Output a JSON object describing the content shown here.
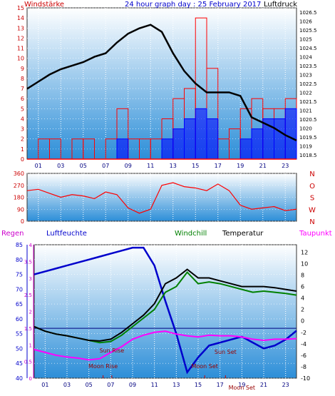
{
  "chart_data": [
    {
      "type": "line",
      "title": "24 hour graph day : 25 February 2017",
      "y_left_label": "Windstärke",
      "y_right_label": "Luftdruck",
      "x_ticks": [
        "01",
        "03",
        "05",
        "07",
        "09",
        "11",
        "13",
        "15",
        "17",
        "19",
        "21",
        "23"
      ],
      "y_left_ticks": [
        "0",
        "1",
        "2",
        "3",
        "4",
        "5",
        "6",
        "7",
        "8",
        "9",
        "10",
        "11",
        "12",
        "13",
        "14",
        "15"
      ],
      "y_left_range": [
        0,
        15
      ],
      "y_right_ticks": [
        "1018.5",
        "1019",
        "1019.5",
        "1020",
        "1020.5",
        "1021",
        "1021.5",
        "1022",
        "1022.5",
        "1023",
        "1023.5",
        "1024",
        "1024.5",
        "1025",
        "1025.5",
        "1026",
        "1026.5"
      ],
      "y_right_range": [
        1018.25,
        1026.75
      ],
      "grid": true,
      "series": [
        {
          "name": "Luftdruck",
          "axis": "right",
          "x": [
            0,
            1,
            2,
            3,
            4,
            5,
            6,
            7,
            8,
            9,
            10,
            11,
            12,
            13,
            14,
            15,
            16,
            17,
            18,
            19,
            20,
            21,
            22,
            23,
            24
          ],
          "values": [
            1022.2,
            1022.6,
            1023.0,
            1023.3,
            1023.5,
            1023.7,
            1024.0,
            1024.2,
            1024.8,
            1025.3,
            1025.6,
            1025.8,
            1025.4,
            1024.2,
            1023.2,
            1022.5,
            1022.0,
            1022.0,
            1022.0,
            1021.8,
            1020.6,
            1020.3,
            1020.0,
            1019.6,
            1019.3
          ],
          "color": "#000000"
        },
        {
          "name": "Windstärke gust",
          "axis": "left",
          "x": [
            0,
            1,
            2,
            3,
            4,
            5,
            6,
            7,
            8,
            9,
            10,
            11,
            12,
            13,
            14,
            15,
            16,
            17,
            18,
            19,
            20,
            21,
            22,
            23,
            24
          ],
          "values": [
            0,
            2,
            2,
            0,
            2,
            2,
            0,
            2,
            5,
            2,
            2,
            2,
            4,
            6,
            7,
            14,
            9,
            2,
            3,
            5,
            6,
            5,
            5,
            6,
            0
          ],
          "color": "#ff0000"
        },
        {
          "name": "Windstärke mean",
          "axis": "left",
          "x": [
            0,
            1,
            2,
            3,
            4,
            5,
            6,
            7,
            8,
            9,
            10,
            11,
            12,
            13,
            14,
            15,
            16,
            17,
            18,
            19,
            20,
            21,
            22,
            23,
            24
          ],
          "values": [
            0,
            0,
            0,
            0,
            0,
            0,
            0,
            0,
            2,
            0,
            0,
            0,
            2,
            3,
            4,
            5,
            4,
            0,
            0,
            2,
            3,
            4,
            4,
            5,
            0
          ],
          "color": "#0000ff"
        }
      ]
    },
    {
      "type": "line",
      "y_left_ticks": [
        "0",
        "90",
        "180",
        "270",
        "360"
      ],
      "y_left_range": [
        0,
        360
      ],
      "y_right_ticks": [
        "N",
        "W",
        "S",
        "O",
        "N"
      ],
      "grid": true,
      "series": [
        {
          "name": "Windrichtung",
          "x": [
            0,
            1,
            2,
            3,
            4,
            5,
            6,
            7,
            8,
            9,
            10,
            11,
            12,
            13,
            14,
            15,
            16,
            17,
            18,
            19,
            20,
            21,
            22,
            23,
            24
          ],
          "values": [
            230,
            240,
            210,
            180,
            200,
            190,
            170,
            220,
            200,
            100,
            60,
            90,
            270,
            290,
            260,
            250,
            230,
            280,
            230,
            120,
            90,
            100,
            110,
            80,
            90
          ],
          "color": "#ff0000"
        }
      ]
    },
    {
      "type": "line",
      "legend": [
        "Regen",
        "Luftfeuchte",
        "Windchill",
        "Temperatur",
        "Taupunkt"
      ],
      "legend_colors": [
        "#cc00cc",
        "#0000cc",
        "#008000",
        "#000000",
        "#ff00ff"
      ],
      "y_left1_label": "Regen",
      "y_left1_ticks": [
        "0",
        "0.5",
        "1",
        "1.5",
        "2",
        "2.5",
        "3",
        "3.5",
        "4"
      ],
      "y_left2_label": "Luftfeuchte",
      "y_left2_ticks": [
        "40",
        "45",
        "50",
        "55",
        "60",
        "65",
        "70",
        "75",
        "80",
        "85"
      ],
      "y_left2_range": [
        40,
        85
      ],
      "y_right_label": "",
      "y_right_ticks": [
        "-10",
        "-8",
        "-6",
        "-4",
        "-2",
        "0",
        "2",
        "4",
        "6",
        "8",
        "10",
        "12"
      ],
      "y_right_range": [
        -10,
        13.3
      ],
      "x_ticks": [
        "01",
        "03",
        "05",
        "07",
        "09",
        "11",
        "13",
        "15",
        "17",
        "19",
        "21",
        "23"
      ],
      "annotations": [
        "Sun Rise",
        "Moon Rise",
        "Sun Set",
        "Moon Set",
        "Moon Set"
      ],
      "grid": true,
      "series": [
        {
          "name": "Luftfeuchte",
          "axis": "left2",
          "x": [
            0,
            1,
            2,
            3,
            4,
            5,
            6,
            7,
            8,
            9,
            10,
            11,
            12,
            13,
            14,
            15,
            16,
            17,
            18,
            19,
            20,
            21,
            22,
            23,
            24
          ],
          "values": [
            75,
            76,
            77,
            78,
            79,
            80,
            81,
            82,
            83,
            84,
            84,
            78,
            66,
            55,
            42,
            47,
            51,
            52,
            53,
            54,
            52,
            50,
            51,
            53,
            56
          ],
          "color": "#0000cc"
        },
        {
          "name": "Temperatur",
          "axis": "right",
          "x": [
            0,
            1,
            2,
            3,
            4,
            5,
            6,
            7,
            8,
            9,
            10,
            11,
            12,
            13,
            14,
            15,
            16,
            17,
            18,
            19,
            20,
            21,
            22,
            23,
            24
          ],
          "values": [
            -1,
            -1.8,
            -2.3,
            -2.6,
            -3.0,
            -3.4,
            -3.5,
            -3.2,
            -2.0,
            -0.5,
            1.0,
            3.0,
            6.5,
            7.5,
            9.0,
            7.5,
            7.5,
            7.0,
            6.5,
            6.0,
            6.0,
            6.0,
            5.8,
            5.5,
            5.2
          ],
          "color": "#000000"
        },
        {
          "name": "Windchill",
          "axis": "right",
          "x": [
            0,
            1,
            2,
            3,
            4,
            5,
            6,
            7,
            8,
            9,
            10,
            11,
            12,
            13,
            14,
            15,
            16,
            17,
            18,
            19,
            20,
            21,
            22,
            23,
            24
          ],
          "values": [
            -1,
            -1.8,
            -2.3,
            -2.6,
            -3.0,
            -3.4,
            -3.8,
            -3.6,
            -2.5,
            -1.0,
            0.5,
            2.0,
            5.0,
            6.0,
            8.5,
            6.5,
            6.8,
            6.5,
            6.0,
            5.5,
            5.0,
            5.2,
            5.0,
            4.8,
            4.5
          ],
          "color": "#008000"
        },
        {
          "name": "Taupunkt",
          "axis": "right",
          "x": [
            0,
            1,
            2,
            3,
            4,
            5,
            6,
            7,
            8,
            9,
            10,
            11,
            12,
            13,
            14,
            15,
            16,
            17,
            18,
            19,
            20,
            21,
            22,
            23,
            24
          ],
          "values": [
            -5.0,
            -5.5,
            -6.0,
            -6.3,
            -6.5,
            -6.8,
            -6.6,
            -5.5,
            -4.5,
            -3.2,
            -2.5,
            -2.0,
            -1.8,
            -2.3,
            -2.6,
            -2.8,
            -2.5,
            -2.6,
            -2.6,
            -2.8,
            -3.2,
            -3.4,
            -3.2,
            -3.2,
            -3.1
          ],
          "color": "#ff00ff"
        },
        {
          "name": "Regen",
          "axis": "left1",
          "x": [
            0,
            24
          ],
          "values": [
            0,
            0
          ],
          "color": "#cc00cc"
        }
      ]
    }
  ]
}
